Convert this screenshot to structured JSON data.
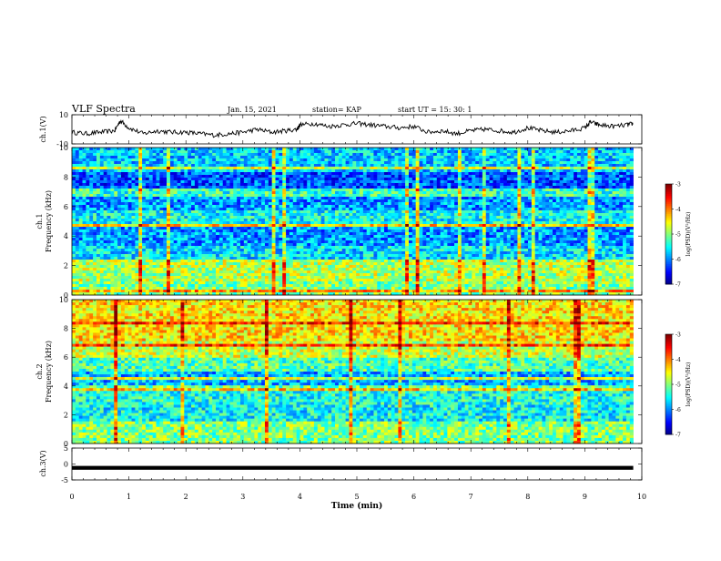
{
  "header": {
    "title": "VLF Spectra",
    "date": "Jan. 15, 2021",
    "station": "station= KAP",
    "start": "start  UT =  15: 30: 1"
  },
  "chart_data": [
    {
      "type": "line",
      "ylabel": "ch.1(V)",
      "xlim": [
        0,
        10
      ],
      "ylim": [
        -10,
        10
      ],
      "yticks": [
        "10",
        "-10"
      ],
      "series": [
        {
          "x": [
            0,
            0.25,
            0.5,
            0.75,
            0.85,
            1,
            1.25,
            1.5,
            1.75,
            2,
            2.25,
            2.5,
            2.75,
            3,
            3.25,
            3.5,
            3.75,
            3.95,
            4,
            4.25,
            4.5,
            4.75,
            5,
            5.25,
            5.5,
            5.75,
            6,
            6.25,
            6.5,
            6.75,
            7,
            7.25,
            7.5,
            7.75,
            8,
            8.25,
            8.5,
            8.75,
            9,
            9.1,
            9.25,
            9.5,
            9.75,
            9.85
          ],
          "y": [
            -2,
            -3,
            -2,
            -1,
            6,
            1,
            -3,
            -1,
            -2,
            -2,
            -3,
            -4,
            -3,
            -2,
            0,
            -2,
            -1,
            0,
            3,
            4,
            2,
            3,
            4,
            3,
            2,
            1,
            2,
            -2,
            -1,
            -3,
            -1,
            0,
            -1,
            -2,
            1,
            -1,
            -2,
            -1,
            1,
            5,
            3,
            2,
            3,
            4
          ]
        }
      ]
    },
    {
      "type": "heatmap",
      "ylabel": "ch.1\nFrequency (kHz)",
      "xlim": [
        0,
        10
      ],
      "ylim": [
        0,
        10
      ],
      "yticks": [
        "0",
        "2",
        "4",
        "6",
        "8",
        "10"
      ],
      "colorbar": {
        "label": "log(PSD)(V²/Hz)",
        "range": [
          -7,
          -3
        ],
        "ticks": [
          "-3",
          "-4",
          "-5",
          "-6",
          "-7"
        ]
      },
      "freq_bands": [
        {
          "range": [
            0,
            1
          ],
          "level": -5.0
        },
        {
          "range": [
            1,
            2.2
          ],
          "level": -4.8
        },
        {
          "range": [
            2.2,
            3.3
          ],
          "level": -5.6
        },
        {
          "range": [
            3.3,
            4.6
          ],
          "level": -5.9
        },
        {
          "range": [
            4.6,
            5.7
          ],
          "level": -5.5
        },
        {
          "range": [
            5.7,
            6.6
          ],
          "level": -5.9
        },
        {
          "range": [
            6.6,
            7.2
          ],
          "level": -5.3
        },
        {
          "range": [
            7.2,
            8.3
          ],
          "level": -6.2
        },
        {
          "range": [
            8.3,
            10
          ],
          "level": -5.7
        }
      ]
    },
    {
      "type": "heatmap",
      "ylabel": "ch.2\nFrequency (kHz)",
      "xlim": [
        0,
        10
      ],
      "ylim": [
        0,
        10
      ],
      "yticks": [
        "0",
        "2",
        "4",
        "6",
        "8",
        "10"
      ],
      "colorbar": {
        "label": "log(PSD)(V²/Hz)",
        "range": [
          -7,
          -3
        ],
        "ticks": [
          "-3",
          "-4",
          "-5",
          "-6",
          "-7"
        ]
      },
      "freq_bands": [
        {
          "range": [
            0,
            1.5
          ],
          "level": -5.0
        },
        {
          "range": [
            1.5,
            2.6
          ],
          "level": -5.5
        },
        {
          "range": [
            2.6,
            3.8
          ],
          "level": -5.4
        },
        {
          "range": [
            3.8,
            5
          ],
          "level": -5.8
        },
        {
          "range": [
            5,
            6
          ],
          "level": -5.2
        },
        {
          "range": [
            6,
            7.2
          ],
          "level": -4.7
        },
        {
          "range": [
            7.2,
            10
          ],
          "level": -4.4
        }
      ]
    },
    {
      "type": "line",
      "ylabel": "ch.3(V)",
      "xlabel": "Time (min)",
      "xlim": [
        0,
        10
      ],
      "ylim": [
        -5,
        5
      ],
      "yticks": [
        "5",
        "0",
        "-5"
      ],
      "xticks": [
        "0",
        "1",
        "2",
        "3",
        "4",
        "5",
        "6",
        "7",
        "8",
        "9",
        "10"
      ],
      "series": [
        {
          "x": [
            0,
            9.85
          ],
          "y": [
            -1.2,
            -1.2
          ],
          "spread": 0.6
        }
      ]
    }
  ]
}
